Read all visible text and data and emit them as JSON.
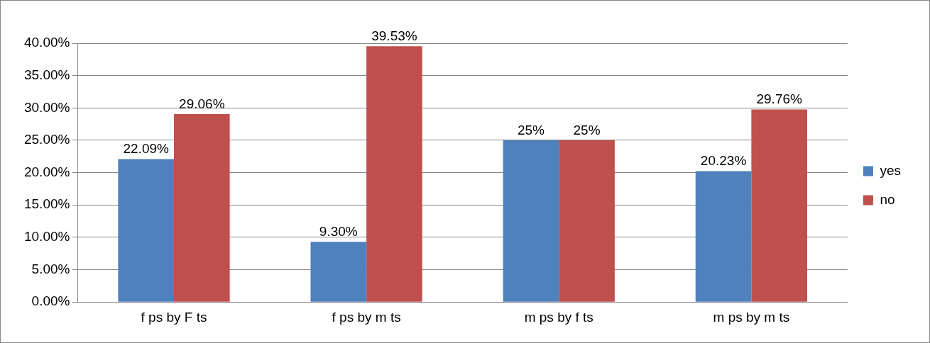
{
  "chart_data": {
    "type": "bar",
    "categories": [
      "f ps by F ts",
      "f ps by m ts",
      "m ps by f ts",
      "m ps by m ts"
    ],
    "series": [
      {
        "name": "yes",
        "color": "#4f81bd",
        "values": [
          22.09,
          9.3,
          25,
          20.23
        ],
        "value_labels": [
          "22.09%",
          "9.30%",
          "25%",
          "20.23%"
        ]
      },
      {
        "name": "no",
        "color": "#c0504d",
        "values": [
          29.06,
          39.53,
          25,
          29.76
        ],
        "value_labels": [
          "29.06%",
          "39.53%",
          "25%",
          "29.76%"
        ]
      }
    ],
    "ylim": [
      0,
      40
    ],
    "yticks": [
      {
        "value": 0,
        "label": "0.00%"
      },
      {
        "value": 5,
        "label": "5.00%"
      },
      {
        "value": 10,
        "label": "10.00%"
      },
      {
        "value": 15,
        "label": "15.00%"
      },
      {
        "value": 20,
        "label": "20.00%"
      },
      {
        "value": 25,
        "label": "25.00%"
      },
      {
        "value": 30,
        "label": "30.00%"
      },
      {
        "value": 35,
        "label": "35.00%"
      },
      {
        "value": 40,
        "label": "40.00%"
      }
    ],
    "grid": "y",
    "legend": "right"
  }
}
